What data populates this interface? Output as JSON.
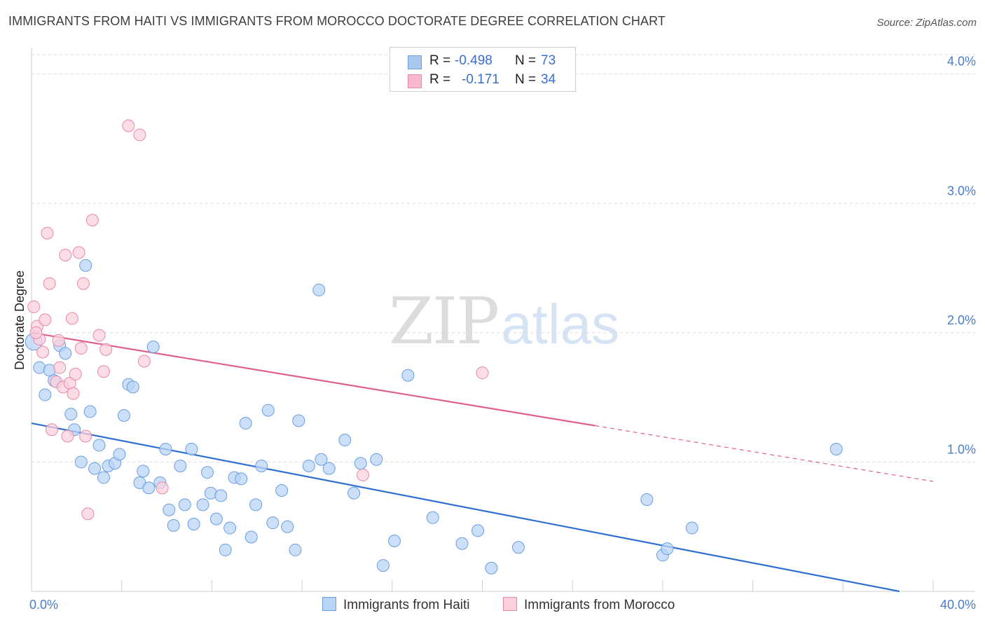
{
  "header": {
    "title": "IMMIGRANTS FROM HAITI VS IMMIGRANTS FROM MOROCCO DOCTORATE DEGREE CORRELATION CHART",
    "source": "Source: ZipAtlas.com"
  },
  "watermark": {
    "zip": "ZIP",
    "atlas": "atlas"
  },
  "legend": {
    "rows": [
      {
        "r_label": "R =",
        "r_value": "-0.498",
        "n_label": "N =",
        "n_value": "73",
        "color": "#a9c8f0",
        "border": "#6a9ee0"
      },
      {
        "r_label": "R =",
        "r_value": "-0.171",
        "n_label": "N =",
        "n_value": "34",
        "color": "#f7b8cb",
        "border": "#e68aa7"
      }
    ],
    "bottom": [
      {
        "label": "Immigrants from Haiti",
        "color": "#b9d4f5",
        "border": "#6a9ee0"
      },
      {
        "label": "Immigrants from Morocco",
        "color": "#fbd0dc",
        "border": "#e68aa7"
      }
    ]
  },
  "chart_data": {
    "type": "scatter",
    "title": "IMMIGRANTS FROM HAITI VS IMMIGRANTS FROM MOROCCO DOCTORATE DEGREE CORRELATION CHART",
    "xlabel": "",
    "ylabel": "Doctorate Degree",
    "xlim": [
      0,
      40
    ],
    "ylim": [
      0,
      4.15
    ],
    "x_ticks": [
      "0.0%",
      "40.0%"
    ],
    "y_ticks": [
      {
        "value": 1.0,
        "label": "1.0%"
      },
      {
        "value": 2.0,
        "label": "2.0%"
      },
      {
        "value": 3.0,
        "label": "3.0%"
      },
      {
        "value": 4.0,
        "label": "4.0%"
      }
    ],
    "grid": "horizontal dashed",
    "legend_position": "top-center",
    "series": [
      {
        "name": "Immigrants from Haiti",
        "color": "#b9d4f5",
        "stroke": "#6a9ee0",
        "line_color": "#2f6fd0",
        "trend": {
          "x0": 0,
          "y0": 1.3,
          "x1": 38.5,
          "y1": 0.0,
          "solid_to": 38.5
        },
        "points": [
          [
            0.1,
            1.93
          ],
          [
            0.35,
            1.73
          ],
          [
            0.6,
            1.52
          ],
          [
            0.8,
            1.71
          ],
          [
            1.0,
            1.63
          ],
          [
            1.25,
            1.9
          ],
          [
            1.5,
            1.84
          ],
          [
            1.75,
            1.37
          ],
          [
            1.9,
            1.25
          ],
          [
            2.2,
            1.0
          ],
          [
            2.4,
            2.52
          ],
          [
            2.6,
            1.39
          ],
          [
            2.8,
            0.95
          ],
          [
            3.0,
            1.13
          ],
          [
            3.2,
            0.88
          ],
          [
            3.4,
            0.97
          ],
          [
            3.7,
            0.99
          ],
          [
            3.9,
            1.06
          ],
          [
            4.1,
            1.36
          ],
          [
            4.3,
            1.6
          ],
          [
            4.5,
            1.58
          ],
          [
            4.8,
            0.84
          ],
          [
            4.95,
            0.93
          ],
          [
            5.2,
            0.8
          ],
          [
            5.4,
            1.89
          ],
          [
            5.7,
            0.84
          ],
          [
            5.95,
            1.1
          ],
          [
            6.1,
            0.63
          ],
          [
            6.3,
            0.51
          ],
          [
            6.6,
            0.97
          ],
          [
            6.8,
            0.67
          ],
          [
            7.1,
            1.1
          ],
          [
            7.2,
            0.52
          ],
          [
            7.6,
            0.67
          ],
          [
            7.8,
            0.92
          ],
          [
            7.95,
            0.76
          ],
          [
            8.2,
            0.56
          ],
          [
            8.4,
            0.74
          ],
          [
            8.6,
            0.32
          ],
          [
            8.8,
            0.49
          ],
          [
            9.0,
            0.88
          ],
          [
            9.3,
            0.87
          ],
          [
            9.5,
            1.3
          ],
          [
            9.75,
            0.42
          ],
          [
            9.95,
            0.67
          ],
          [
            10.2,
            0.97
          ],
          [
            10.5,
            1.4
          ],
          [
            10.7,
            0.53
          ],
          [
            11.1,
            0.78
          ],
          [
            11.35,
            0.5
          ],
          [
            11.7,
            0.32
          ],
          [
            11.85,
            1.32
          ],
          [
            12.3,
            0.97
          ],
          [
            12.85,
            1.02
          ],
          [
            12.75,
            2.33
          ],
          [
            13.2,
            0.95
          ],
          [
            13.9,
            1.17
          ],
          [
            14.3,
            0.76
          ],
          [
            14.6,
            0.99
          ],
          [
            15.3,
            1.02
          ],
          [
            15.6,
            0.2
          ],
          [
            16.1,
            0.39
          ],
          [
            16.7,
            1.67
          ],
          [
            17.8,
            0.57
          ],
          [
            19.1,
            0.37
          ],
          [
            19.8,
            0.47
          ],
          [
            20.4,
            0.18
          ],
          [
            21.6,
            0.34
          ],
          [
            27.3,
            0.71
          ],
          [
            28.0,
            0.28
          ],
          [
            28.2,
            0.33
          ],
          [
            29.3,
            0.49
          ],
          [
            35.7,
            1.1
          ]
        ]
      },
      {
        "name": "Immigrants from Morocco",
        "color": "#fbd0dc",
        "stroke": "#e68aa7",
        "line_color": "#e0608a",
        "trend": {
          "x0": 0,
          "y0": 2.0,
          "x1": 40,
          "y1": 0.85,
          "solid_to": 25
        },
        "points": [
          [
            0.1,
            2.2
          ],
          [
            0.25,
            2.05
          ],
          [
            0.35,
            1.95
          ],
          [
            0.5,
            1.85
          ],
          [
            0.6,
            2.1
          ],
          [
            0.7,
            2.77
          ],
          [
            0.8,
            2.38
          ],
          [
            0.9,
            1.25
          ],
          [
            1.1,
            1.62
          ],
          [
            1.2,
            1.94
          ],
          [
            1.25,
            1.73
          ],
          [
            1.4,
            1.58
          ],
          [
            1.5,
            2.6
          ],
          [
            1.6,
            1.2
          ],
          [
            1.7,
            1.61
          ],
          [
            1.8,
            2.11
          ],
          [
            1.85,
            1.53
          ],
          [
            1.95,
            1.68
          ],
          [
            2.1,
            2.62
          ],
          [
            2.2,
            1.88
          ],
          [
            2.3,
            2.38
          ],
          [
            2.4,
            1.2
          ],
          [
            2.5,
            0.6
          ],
          [
            2.7,
            2.87
          ],
          [
            3.0,
            1.98
          ],
          [
            3.2,
            1.7
          ],
          [
            3.3,
            1.87
          ],
          [
            4.3,
            3.6
          ],
          [
            4.8,
            3.53
          ],
          [
            5.0,
            1.78
          ],
          [
            5.8,
            0.8
          ],
          [
            0.2,
            2.0
          ],
          [
            14.7,
            0.9
          ],
          [
            20.0,
            1.69
          ]
        ]
      }
    ]
  }
}
